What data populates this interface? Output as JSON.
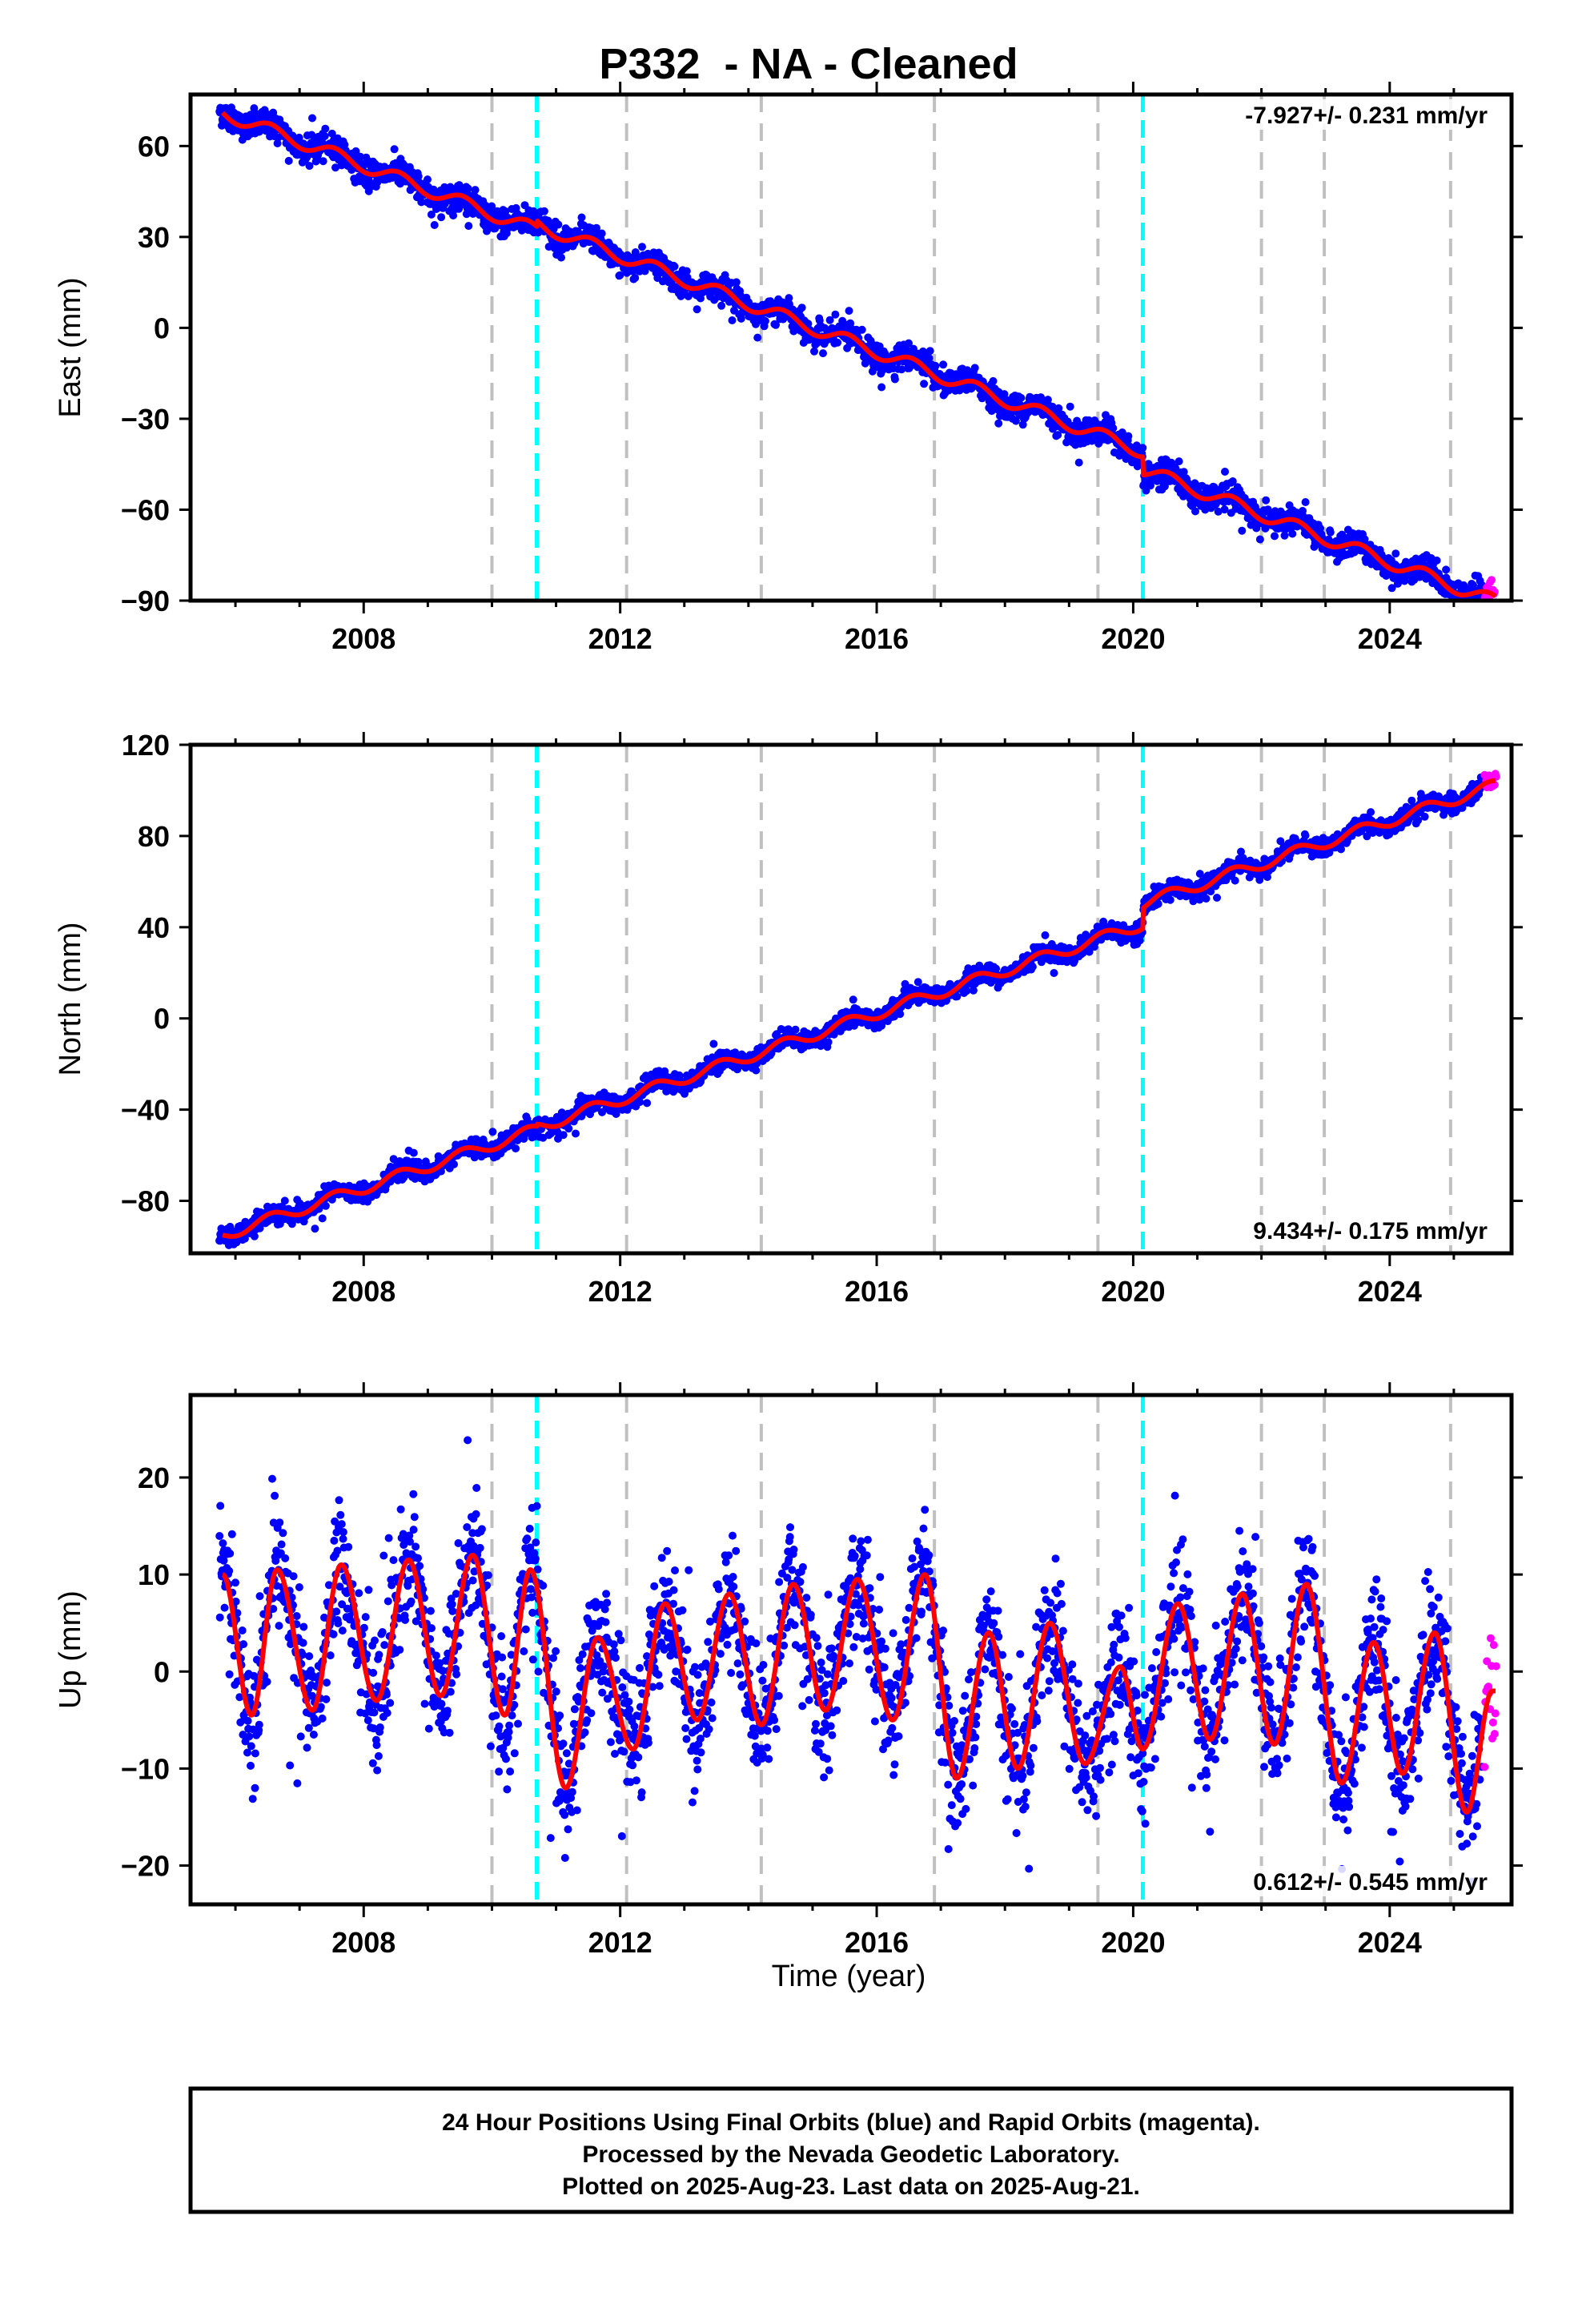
{
  "chart_data": {
    "type": "scatter",
    "title": "P332  - NA - Cleaned",
    "xlabel": "Time (year)",
    "xlim": [
      2005.3,
      2025.9
    ],
    "x_ticks": [
      2008,
      2012,
      2016,
      2020,
      2024
    ],
    "x_tick_labels": [
      "2008",
      "2012",
      "2016",
      "2020",
      "2024"
    ],
    "event_lines": {
      "gray_dashed": [
        2010.0,
        2012.1,
        2014.2,
        2016.9,
        2019.45,
        2022.0,
        2022.98,
        2024.95
      ],
      "cyan_dashed": [
        2010.7,
        2020.15
      ]
    },
    "colors": {
      "final_orbits": "#0000ff",
      "rapid_orbits": "#ff00ff",
      "model_fit": "#ff0000",
      "gray_lines": "#c0c0c0",
      "cyan_lines": "#00ffff"
    },
    "rapid_start": 2025.45,
    "panels": [
      {
        "id": "east",
        "ylabel": "East (mm)",
        "ylim": [
          -90,
          77
        ],
        "y_ticks": [
          -90,
          -60,
          -30,
          0,
          30,
          60
        ],
        "y_tick_labels": [
          "−90",
          "−60",
          "−30",
          "0",
          "30",
          "60"
        ],
        "rate_label": "-7.927+/- 0.231 mm/yr",
        "rate_position": "top-right",
        "model": {
          "start_x": 2005.8,
          "start_y": 71,
          "rate": -7.927,
          "amp": 2.2,
          "noise": 2.2,
          "offsets": [
            [
              2010.7,
              2
            ],
            [
              2020.15,
              -6
            ]
          ]
        }
      },
      {
        "id": "north",
        "ylabel": "North (mm)",
        "ylim": [
          -103,
          120
        ],
        "y_ticks": [
          -80,
          -40,
          0,
          40,
          80,
          120
        ],
        "y_tick_labels": [
          "−80",
          "−40",
          "0",
          "40",
          "80",
          "120"
        ],
        "rate_label": "9.434+/- 0.175 mm/yr",
        "rate_position": "bottom-right",
        "model": {
          "start_x": 2005.8,
          "start_y": -95,
          "rate": 9.434,
          "amp": 2.5,
          "noise": 2.0,
          "offsets": [
            [
              2010.7,
              1
            ],
            [
              2020.15,
              9
            ]
          ]
        }
      },
      {
        "id": "up",
        "ylabel": "Up (mm)",
        "ylim": [
          -24,
          28.5
        ],
        "y_ticks": [
          -20,
          -10,
          0,
          10,
          20
        ],
        "y_tick_labels": [
          "−20",
          "−10",
          "0",
          "10",
          "20"
        ],
        "rate_label": "0.612+/- 0.545 mm/yr",
        "rate_position": "bottom-right",
        "model": {
          "type": "seasonal",
          "amp": 7,
          "noise": 3.2,
          "fit_points": [
            [
              2005.8,
              10
            ],
            [
              2006.25,
              -4.5
            ],
            [
              2006.65,
              10.5
            ],
            [
              2007.2,
              -4
            ],
            [
              2007.65,
              11
            ],
            [
              2008.2,
              -3
            ],
            [
              2008.7,
              11.5
            ],
            [
              2009.2,
              -2.5
            ],
            [
              2009.7,
              12
            ],
            [
              2010.2,
              -4.5
            ],
            [
              2010.6,
              10.5
            ],
            [
              2011.15,
              -12
            ],
            [
              2011.65,
              3.5
            ],
            [
              2012.2,
              -8
            ],
            [
              2012.7,
              7
            ],
            [
              2013.2,
              -5
            ],
            [
              2013.7,
              8
            ],
            [
              2014.2,
              -5.5
            ],
            [
              2014.7,
              9
            ],
            [
              2015.2,
              -4
            ],
            [
              2015.7,
              9.5
            ],
            [
              2016.25,
              -5
            ],
            [
              2016.75,
              10
            ],
            [
              2017.25,
              -11
            ],
            [
              2017.75,
              4
            ],
            [
              2018.2,
              -10
            ],
            [
              2018.7,
              5
            ],
            [
              2019.25,
              -9.5
            ],
            [
              2019.8,
              0.5
            ],
            [
              2020.15,
              -8
            ],
            [
              2020.7,
              7
            ],
            [
              2021.2,
              -7
            ],
            [
              2021.7,
              8
            ],
            [
              2022.2,
              -7.5
            ],
            [
              2022.7,
              9
            ],
            [
              2023.25,
              -11.5
            ],
            [
              2023.75,
              3
            ],
            [
              2024.2,
              -10.5
            ],
            [
              2024.7,
              4
            ],
            [
              2025.2,
              -14.5
            ],
            [
              2025.6,
              -2
            ]
          ]
        }
      }
    ]
  },
  "caption": {
    "line1": "24 Hour Positions Using Final Orbits (blue) and Rapid Orbits (magenta).",
    "line2": "Processed by the Nevada Geodetic Laboratory.",
    "line3": "Plotted on 2025-Aug-23. Last data on 2025-Aug-21."
  }
}
